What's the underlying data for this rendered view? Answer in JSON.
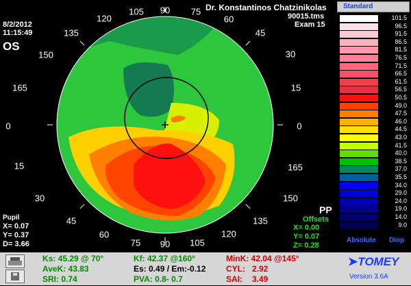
{
  "header": {
    "doctor": "Dr. Konstantinos Chatzinikolas",
    "file": "90015.tms",
    "exam": "Exam 15",
    "date": "8/2/2012",
    "time": "11:15:49",
    "eye": "OS"
  },
  "angles": {
    "a90": "90",
    "a105": "105",
    "a75": "75",
    "a120": "120",
    "a60": "60",
    "a135": "135",
    "a45": "45",
    "a150": "150",
    "a30": "30",
    "a165": "165",
    "a15": "15",
    "a0": "0",
    "l0": "0",
    "l15": "15",
    "r165": "165",
    "l30": "30",
    "r150": "150",
    "l45": "45",
    "r135": "135",
    "l60": "60",
    "r120": "120",
    "l75": "75",
    "b90": "90",
    "b105": "105"
  },
  "pupil": {
    "label": "Pupil",
    "x": "X=  0.07",
    "y": "Y=  0.37",
    "d": "D=  3.66"
  },
  "offsets": {
    "pp": "PP",
    "label": "Offsets",
    "x": "X=  0.00",
    "y": "Y=  0.07",
    "z": "Z=  0.28"
  },
  "scale": {
    "mode": "Standard",
    "absolute": "Absolute",
    "diop": "Diop",
    "steps": [
      {
        "value": "101.5",
        "color": "#ffffff"
      },
      {
        "value": "96.5",
        "color": "#ffe0e8"
      },
      {
        "value": "91.5",
        "color": "#ffc8d4"
      },
      {
        "value": "86.5",
        "color": "#ffb0c0"
      },
      {
        "value": "81.5",
        "color": "#ff98ac"
      },
      {
        "value": "76.5",
        "color": "#ff8098"
      },
      {
        "value": "71.5",
        "color": "#ff6880"
      },
      {
        "value": "66.5",
        "color": "#f85068"
      },
      {
        "value": "61.5",
        "color": "#f04050"
      },
      {
        "value": "56.5",
        "color": "#e83040"
      },
      {
        "value": "50.5",
        "color": "#ff1010"
      },
      {
        "value": "49.0",
        "color": "#ff4000"
      },
      {
        "value": "47.5",
        "color": "#ff8000"
      },
      {
        "value": "46.0",
        "color": "#ffb000"
      },
      {
        "value": "44.5",
        "color": "#ffe000"
      },
      {
        "value": "43.0",
        "color": "#ffff00"
      },
      {
        "value": "41.5",
        "color": "#c0ff00"
      },
      {
        "value": "40.0",
        "color": "#60e000"
      },
      {
        "value": "38.5",
        "color": "#00c000"
      },
      {
        "value": "37.0",
        "color": "#008860"
      },
      {
        "value": "35.5",
        "color": "#0060a0"
      },
      {
        "value": "34.0",
        "color": "#0000ff"
      },
      {
        "value": "29.0",
        "color": "#0000d8"
      },
      {
        "value": "24.0",
        "color": "#0000b0"
      },
      {
        "value": "19.0",
        "color": "#000090"
      },
      {
        "value": "14.0",
        "color": "#000070"
      },
      {
        "value": "9.0",
        "color": "#000050"
      }
    ]
  },
  "indices": {
    "ks": "Ks: 45.29 @ 70°",
    "kf": "Kf: 42.37 @160°",
    "mink": "MinK: 42.04 @145°",
    "avek": "AveK: 43.83",
    "es": "Es: 0.49 / Em:-0.12",
    "cyl_label": "CYL:",
    "cyl_value": "2.92",
    "sri": "SRI: 0.74",
    "pva": "PVA:  0.8-  0.7",
    "sai_label": "SAI:",
    "sai_value": "3.49"
  },
  "brand": {
    "logo": "TOMEY",
    "version": "Version 3.6A"
  }
}
